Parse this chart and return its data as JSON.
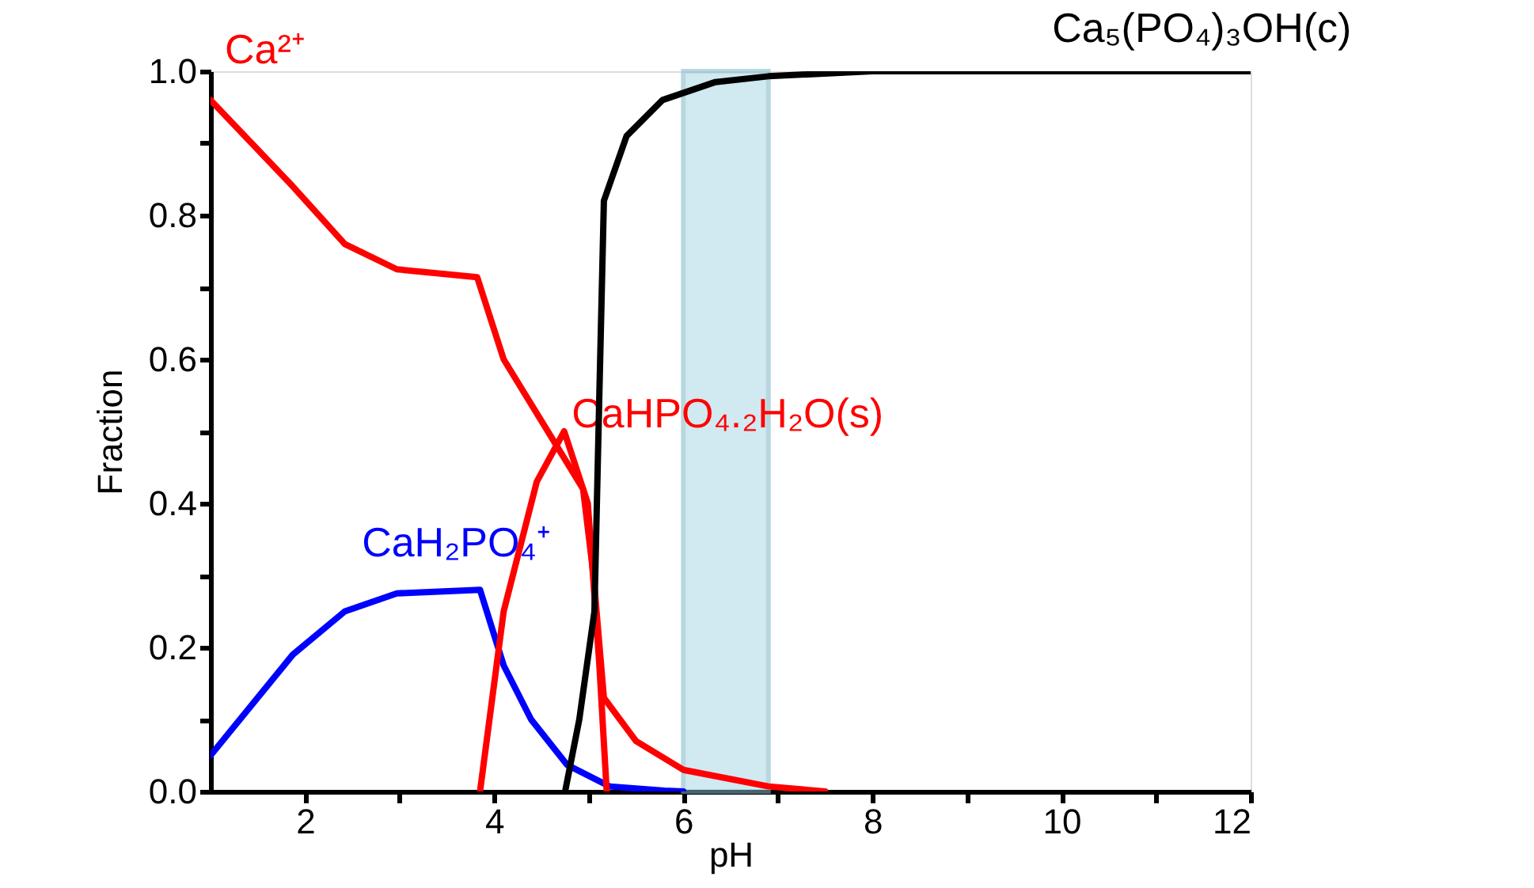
{
  "chart_data": {
    "type": "line",
    "xlabel": "pH",
    "ylabel": "Fraction",
    "xlim": [
      1,
      12
    ],
    "ylim": [
      0,
      1
    ],
    "xticks": [
      {
        "value": 2,
        "label": "2"
      },
      {
        "value": 3,
        "label": null
      },
      {
        "value": 4,
        "label": "4"
      },
      {
        "value": 5,
        "label": null
      },
      {
        "value": 6,
        "label": "6"
      },
      {
        "value": 7,
        "label": null
      },
      {
        "value": 8,
        "label": "8"
      },
      {
        "value": 9,
        "label": null
      },
      {
        "value": 10,
        "label": "10"
      },
      {
        "value": 11,
        "label": null
      },
      {
        "value": 12,
        "label": "12"
      }
    ],
    "yticks": [
      {
        "value": 0,
        "label": "0.0"
      },
      {
        "value": 0.1,
        "label": null
      },
      {
        "value": 0.2,
        "label": "0.2"
      },
      {
        "value": 0.3,
        "label": null
      },
      {
        "value": 0.4,
        "label": "0.4"
      },
      {
        "value": 0.5,
        "label": null
      },
      {
        "value": 0.6,
        "label": "0.6"
      },
      {
        "value": 0.7,
        "label": null
      },
      {
        "value": 0.8,
        "label": "0.8"
      },
      {
        "value": 0.9,
        "label": null
      },
      {
        "value": 1.0,
        "label": "1.0"
      }
    ],
    "grid": false,
    "marker": "none",
    "line_style": "solid",
    "bands": [
      {
        "axis": "x",
        "from": 6.0,
        "to": 6.9,
        "color": "#add8e6"
      }
    ],
    "series": [
      {
        "name": "Ca²⁺",
        "color": "#ff0000",
        "x": [
          1,
          1.87,
          2.42,
          2.97,
          3.82,
          4.1,
          4.66,
          4.94,
          5.05,
          5.16,
          5.5,
          6.0,
          6.9,
          7.5
        ],
        "values": [
          0.96,
          0.84,
          0.76,
          0.725,
          0.714,
          0.6,
          0.48,
          0.42,
          0.3,
          0.13,
          0.07,
          0.03,
          0.007,
          0
        ]
      },
      {
        "name": "CaH₂PO₄⁺",
        "color": "#0000ff",
        "x": [
          1,
          1.87,
          2.42,
          2.97,
          3.85,
          4.1,
          4.39,
          4.77,
          5.22,
          5.8,
          6.0
        ],
        "values": [
          0.05,
          0.19,
          0.25,
          0.275,
          0.28,
          0.175,
          0.1,
          0.037,
          0.007,
          0.001,
          0
        ]
      },
      {
        "name": "CaHPO₄.₂H₂O(s)",
        "color": "#ff0000",
        "x": [
          3.85,
          4.1,
          4.45,
          4.74,
          4.99,
          5.11,
          5.19
        ],
        "values": [
          0,
          0.25,
          0.43,
          0.5,
          0.4,
          0.18,
          0
        ]
      },
      {
        "name": "Ca₅(PO₄)₃OH(c)",
        "color": "#000000",
        "x": [
          4.75,
          4.9,
          5.06,
          5.11,
          5.16,
          5.4,
          5.78,
          6.34,
          6.9,
          8,
          12
        ],
        "values": [
          0,
          0.1,
          0.25,
          0.54,
          0.82,
          0.91,
          0.96,
          0.985,
          0.993,
          1.0,
          1.0
        ]
      }
    ]
  }
}
